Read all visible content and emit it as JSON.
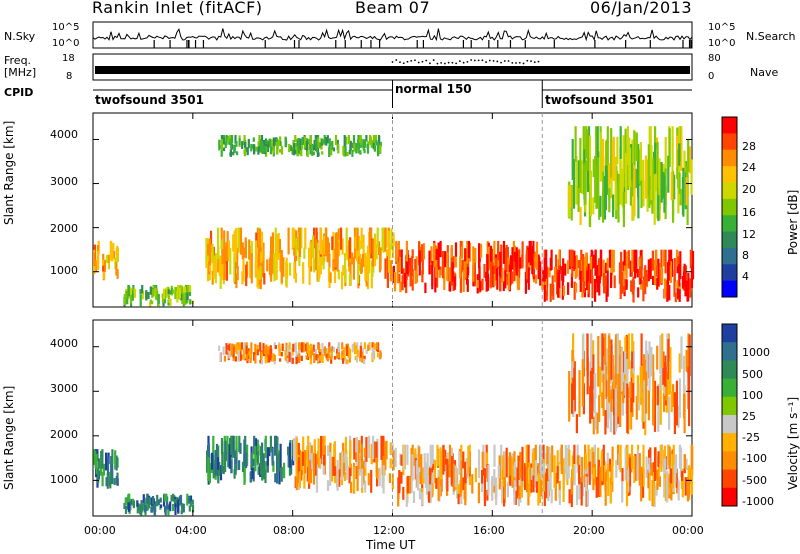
{
  "header": {
    "station": "Rankin Inlet (fitACF)",
    "beam": "Beam 07",
    "date": "06/Jan/2013"
  },
  "top_panels": {
    "nsky_label": "N.Sky",
    "nsky_ticks": [
      "10^5",
      "10^0"
    ],
    "nsearch_label": "N.Search",
    "freq_label": "Freq.",
    "freq_unit": "[MHz]",
    "freq_ticks": [
      "18",
      "8"
    ],
    "nave_ticks": [
      "80",
      "0"
    ],
    "nave_label": "Nave",
    "cpid_label": "CPID",
    "cpid_segments": [
      {
        "name": "twofsound 3501",
        "start_hour": 0,
        "end_hour": 12
      },
      {
        "name": "normal 150",
        "start_hour": 12,
        "end_hour": 18
      },
      {
        "name": "twofsound 3501",
        "start_hour": 18,
        "end_hour": 24
      }
    ]
  },
  "chart_data": [
    {
      "type": "heatmap",
      "title": "Power",
      "xlabel": "",
      "ylabel": "Slant Range [km]",
      "xlim": [
        0,
        24
      ],
      "ylim": [
        200,
        4600
      ],
      "yticks": [
        "1000",
        "2000",
        "3000",
        "4000"
      ],
      "colorbar": {
        "label": "Power [dB]",
        "ticks": [
          "28",
          "24",
          "20",
          "16",
          "12",
          "8",
          "4"
        ],
        "colors": [
          "#ff0000",
          "#ff4500",
          "#ff8c00",
          "#ffc000",
          "#cdd800",
          "#7fc800",
          "#38b038",
          "#2e8b57",
          "#2f6f8f",
          "#1f3fa0",
          "#0000ff"
        ],
        "range": [
          0,
          30
        ]
      },
      "echo_regions": [
        {
          "x": [
            0,
            1
          ],
          "y": [
            800,
            1700
          ],
          "level": 22
        },
        {
          "x": [
            1.2,
            4
          ],
          "y": [
            200,
            700
          ],
          "level": 14
        },
        {
          "x": [
            4.5,
            12
          ],
          "y": [
            600,
            2000
          ],
          "level": 22
        },
        {
          "x": [
            12,
            18
          ],
          "y": [
            500,
            1700
          ],
          "level": 27
        },
        {
          "x": [
            18,
            24
          ],
          "y": [
            300,
            1500
          ],
          "level": 28
        },
        {
          "x": [
            5,
            11.5
          ],
          "y": [
            3600,
            4100
          ],
          "level": 12
        },
        {
          "x": [
            19,
            24
          ],
          "y": [
            2000,
            4300
          ],
          "level": 16
        }
      ]
    },
    {
      "type": "heatmap",
      "title": "Velocity",
      "xlabel": "Time UT",
      "ylabel": "Slant Range [km]",
      "xlim": [
        0,
        24
      ],
      "ylim": [
        200,
        4600
      ],
      "xticks": [
        "00:00",
        "04:00",
        "08:00",
        "12:00",
        "16:00",
        "20:00",
        "00:00"
      ],
      "yticks": [
        "1000",
        "2000",
        "3000",
        "4000"
      ],
      "colorbar": {
        "label": "Velocity [m s⁻¹]",
        "ticks": [
          "1000",
          "500",
          "100",
          "25",
          "-25",
          "-100",
          "-500",
          "-1000"
        ],
        "colors": [
          "#1f3fa0",
          "#2f6f8f",
          "#2e8b57",
          "#38b038",
          "#7fc800",
          "#c8c8c8",
          "#ffb000",
          "#ff8c00",
          "#ff4500",
          "#ff0000"
        ],
        "range": [
          -1000,
          1000
        ]
      },
      "echo_regions": [
        {
          "x": [
            0,
            1
          ],
          "y": [
            800,
            1700
          ],
          "level": "positive"
        },
        {
          "x": [
            1.2,
            4
          ],
          "y": [
            200,
            700
          ],
          "level": "positive"
        },
        {
          "x": [
            4.5,
            8
          ],
          "y": [
            900,
            2000
          ],
          "level": "positive"
        },
        {
          "x": [
            8,
            12
          ],
          "y": [
            700,
            2000
          ],
          "level": "negative"
        },
        {
          "x": [
            12,
            24
          ],
          "y": [
            400,
            1800
          ],
          "level": "negative"
        },
        {
          "x": [
            5,
            11.5
          ],
          "y": [
            3600,
            4100
          ],
          "level": "negative"
        },
        {
          "x": [
            19,
            24
          ],
          "y": [
            2000,
            4300
          ],
          "level": "negative"
        }
      ]
    }
  ]
}
